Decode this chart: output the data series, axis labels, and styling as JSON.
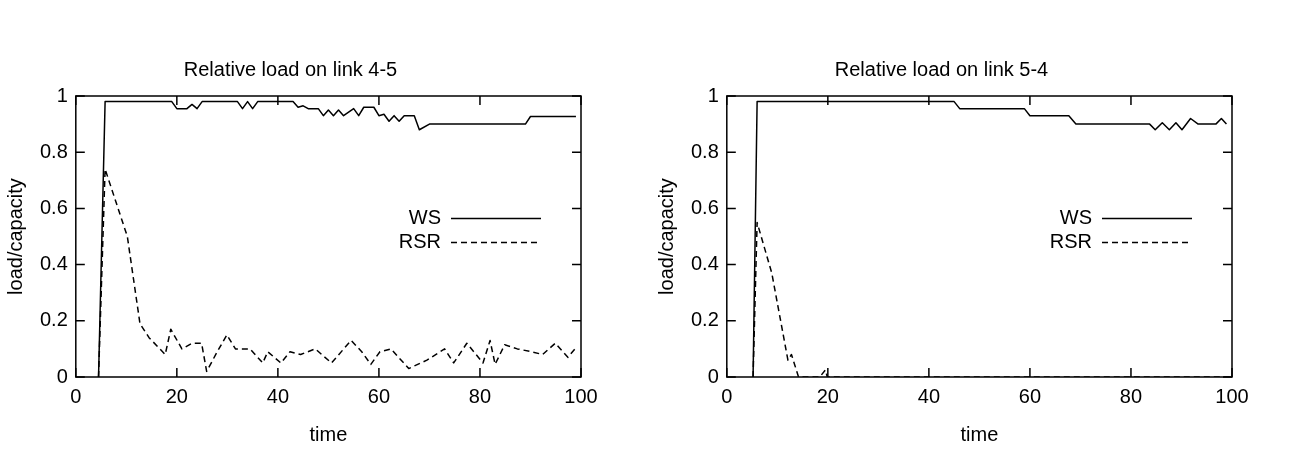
{
  "chart_data": [
    {
      "type": "line",
      "title": "Relative load on link 4-5",
      "xlabel": "time",
      "ylabel": "load/capacity",
      "xlim": [
        0,
        100
      ],
      "ylim": [
        0,
        1
      ],
      "xticks": [
        0,
        20,
        40,
        60,
        80,
        100
      ],
      "yticks": [
        0,
        0.2,
        0.4,
        0.6,
        0.8,
        1
      ],
      "legend": "right",
      "grid": false,
      "marker": "none",
      "series": [
        {
          "name": "WS",
          "color": "#000000",
          "line_style": "solid",
          "x": [
            4.5,
            5.8,
            19,
            20,
            22,
            23,
            24,
            25,
            32,
            33,
            34,
            35,
            36,
            43,
            44,
            45,
            46,
            48,
            49,
            50,
            51,
            52,
            53,
            55,
            56,
            57,
            59,
            60,
            61,
            62,
            63,
            64,
            65,
            67,
            68,
            70,
            89,
            90,
            99
          ],
          "values": [
            0,
            0.98,
            0.98,
            0.955,
            0.955,
            0.97,
            0.955,
            0.98,
            0.98,
            0.955,
            0.98,
            0.955,
            0.98,
            0.98,
            0.96,
            0.965,
            0.955,
            0.955,
            0.93,
            0.95,
            0.93,
            0.95,
            0.93,
            0.955,
            0.93,
            0.96,
            0.96,
            0.93,
            0.935,
            0.91,
            0.93,
            0.91,
            0.93,
            0.93,
            0.88,
            0.9,
            0.9,
            0.927,
            0.927
          ]
        },
        {
          "name": "RSR",
          "color": "#000000",
          "line_style": "dashed",
          "x": [
            4.5,
            5.8,
            10.2,
            12.7,
            14.5,
            17.7,
            18.8,
            21,
            23,
            24.9,
            25.9,
            28,
            29.9,
            31.6,
            34.5,
            37,
            38,
            40.6,
            42.4,
            44.5,
            47.4,
            50.6,
            54.5,
            56.6,
            58.4,
            60.2,
            62.4,
            65.9,
            69.5,
            73,
            74.8,
            77.4,
            80.6,
            82,
            83,
            84.9,
            87.4,
            90.2,
            92.4,
            94.9,
            97.4,
            98.8
          ],
          "values": [
            0,
            0.74,
            0.5,
            0.19,
            0.14,
            0.08,
            0.17,
            0.1,
            0.12,
            0.12,
            0.02,
            0.09,
            0.15,
            0.1,
            0.1,
            0.05,
            0.09,
            0.05,
            0.09,
            0.08,
            0.1,
            0.05,
            0.13,
            0.09,
            0.045,
            0.09,
            0.1,
            0.03,
            0.06,
            0.1,
            0.05,
            0.12,
            0.05,
            0.13,
            0.045,
            0.115,
            0.1,
            0.09,
            0.08,
            0.12,
            0.07,
            0.1
          ]
        }
      ]
    },
    {
      "type": "line",
      "title": "Relative load on link 5-4",
      "xlabel": "time",
      "ylabel": "load/capacity",
      "xlim": [
        0,
        100
      ],
      "ylim": [
        0,
        1
      ],
      "xticks": [
        0,
        20,
        40,
        60,
        80,
        100
      ],
      "yticks": [
        0,
        0.2,
        0.4,
        0.6,
        0.8,
        1
      ],
      "legend": "right",
      "grid": false,
      "marker": "none",
      "series": [
        {
          "name": "WS",
          "color": "#000000",
          "line_style": "solid",
          "x": [
            5.2,
            6,
            45,
            46.1,
            58.9,
            60,
            67.7,
            69.1,
            83.7,
            84.8,
            86.2,
            87.6,
            88.9,
            90.1,
            91.8,
            93.3,
            96.8,
            97.9,
            98.9
          ],
          "values": [
            0,
            0.98,
            0.98,
            0.955,
            0.955,
            0.93,
            0.93,
            0.9,
            0.9,
            0.88,
            0.905,
            0.88,
            0.905,
            0.88,
            0.92,
            0.9,
            0.9,
            0.92,
            0.9
          ]
        },
        {
          "name": "RSR",
          "color": "#000000",
          "line_style": "dashed",
          "x": [
            5.2,
            6,
            8.9,
            12.1,
            12.8,
            14.2,
            18.4,
            19.5,
            19.9,
            100
          ],
          "values": [
            0,
            0.55,
            0.37,
            0.06,
            0.08,
            0,
            0,
            0.025,
            0,
            0
          ]
        }
      ]
    }
  ]
}
